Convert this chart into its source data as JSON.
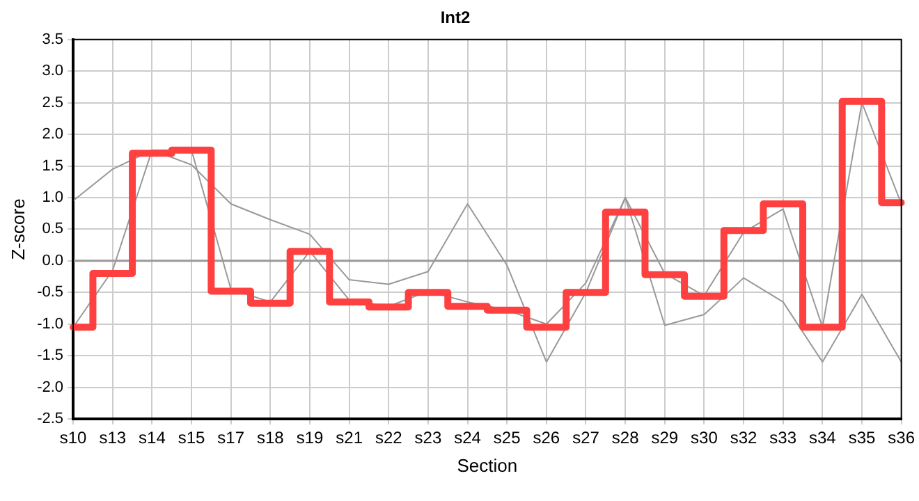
{
  "chart_data": {
    "type": "line",
    "title": "Int2",
    "xlabel": "Section",
    "ylabel": "Z-score",
    "categories": [
      "s10",
      "s13",
      "s14",
      "s15",
      "s17",
      "s18",
      "s19",
      "s21",
      "s22",
      "s23",
      "s24",
      "s25",
      "s26",
      "s27",
      "s28",
      "s29",
      "s30",
      "s32",
      "s33",
      "s34",
      "s35",
      "s36"
    ],
    "series": [
      {
        "color": "#999999",
        "values": [
          0.95,
          1.45,
          1.75,
          1.52,
          0.9,
          0.65,
          0.42,
          -0.3,
          -0.37,
          -0.17,
          0.9,
          -0.07,
          -1.6,
          -0.5,
          1.0,
          -1.02,
          -0.85,
          -0.27,
          -0.65,
          -1.6,
          -0.53,
          -1.6
        ]
      },
      {
        "color": "#999999",
        "values": [
          -1.05,
          -0.15,
          1.75,
          1.75,
          -0.45,
          -0.65,
          0.15,
          -0.62,
          -0.72,
          -0.48,
          -0.65,
          -0.78,
          -1.0,
          -0.35,
          1.0,
          -0.2,
          -0.55,
          0.45,
          0.82,
          -1.05,
          2.5,
          0.9
        ]
      },
      {
        "type": "step",
        "color": "#ff4040",
        "values": [
          -1.05,
          -0.2,
          1.7,
          1.75,
          -0.48,
          -0.67,
          0.15,
          -0.65,
          -0.73,
          -0.5,
          -0.72,
          -0.78,
          -1.05,
          -0.5,
          0.77,
          -0.22,
          -0.56,
          0.48,
          0.9,
          -1.05,
          2.52,
          0.92
        ]
      }
    ],
    "ylim": [
      -2.5,
      3.5
    ],
    "yticks": [
      {
        "value": -2.5,
        "label": "-2.5"
      },
      {
        "value": -2,
        "label": "-2.0"
      },
      {
        "value": -1.5,
        "label": "-1.5"
      },
      {
        "value": -1,
        "label": "-1.0"
      },
      {
        "value": -0.5,
        "label": "-0.5"
      },
      {
        "value": 0,
        "label": "0.0"
      },
      {
        "value": 0.5,
        "label": "0.5"
      },
      {
        "value": 1,
        "label": "1.0"
      },
      {
        "value": 1.5,
        "label": "1.5"
      },
      {
        "value": 2,
        "label": "2.0"
      },
      {
        "value": 2.5,
        "label": "2.5"
      },
      {
        "value": 3,
        "label": "3.0"
      },
      {
        "value": 3.5,
        "label": "3.5"
      }
    ],
    "ref_lines": [
      {
        "axis": "y",
        "value": 0,
        "color": "#999999"
      }
    ],
    "grid": true,
    "legend": false,
    "marker": "none",
    "line_style": "solid"
  }
}
